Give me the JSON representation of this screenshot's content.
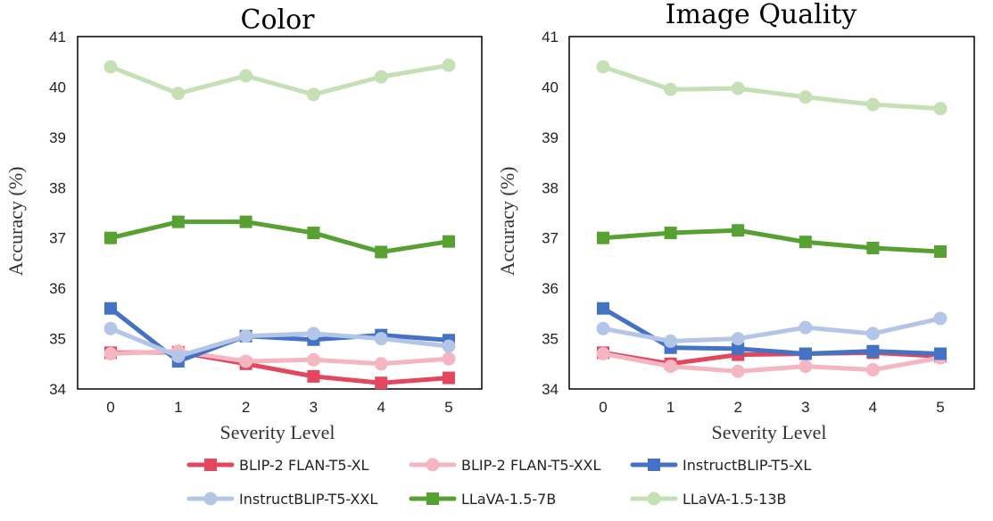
{
  "chart_data": [
    {
      "type": "line",
      "title": "Color",
      "xlabel": "Severity Level",
      "ylabel": "Accuracy (%)",
      "ylim": [
        34,
        41
      ],
      "yticks": [
        34,
        35,
        36,
        37,
        38,
        39,
        40,
        41
      ],
      "x": [
        0,
        1,
        2,
        3,
        4,
        5
      ],
      "grid": false,
      "series": [
        {
          "name": "BLIP-2 FLAN-T5-XL",
          "values": [
            34.72,
            34.73,
            34.5,
            34.25,
            34.12,
            34.22
          ]
        },
        {
          "name": "BLIP-2 FLAN-T5-XXL",
          "values": [
            34.7,
            34.75,
            34.55,
            34.58,
            34.5,
            34.6
          ]
        },
        {
          "name": "InstructBLIP-T5-XL",
          "values": [
            35.6,
            34.55,
            35.05,
            34.98,
            35.07,
            34.97
          ]
        },
        {
          "name": "InstructBLIP-T5-XXL",
          "values": [
            35.2,
            34.65,
            35.05,
            35.1,
            35.0,
            34.85
          ]
        },
        {
          "name": "LLaVA-1.5-7B",
          "values": [
            37.0,
            37.32,
            37.32,
            37.1,
            36.72,
            36.93
          ]
        },
        {
          "name": "LLaVA-1.5-13B",
          "values": [
            40.4,
            39.87,
            40.22,
            39.85,
            40.2,
            40.43
          ]
        }
      ]
    },
    {
      "type": "line",
      "title": "Image Quality",
      "xlabel": "Severity Level",
      "ylabel": "Accuracy (%)",
      "ylim": [
        34,
        41
      ],
      "yticks": [
        34,
        35,
        36,
        37,
        38,
        39,
        40,
        41
      ],
      "x": [
        0,
        1,
        2,
        3,
        4,
        5
      ],
      "grid": false,
      "series": [
        {
          "name": "BLIP-2 FLAN-T5-XL",
          "values": [
            34.72,
            34.5,
            34.68,
            34.7,
            34.72,
            34.65
          ]
        },
        {
          "name": "BLIP-2 FLAN-T5-XXL",
          "values": [
            34.7,
            34.45,
            34.35,
            34.45,
            34.38,
            34.62
          ]
        },
        {
          "name": "InstructBLIP-T5-XL",
          "values": [
            35.6,
            34.82,
            34.8,
            34.7,
            34.75,
            34.7
          ]
        },
        {
          "name": "InstructBLIP-T5-XXL",
          "values": [
            35.2,
            34.95,
            35.0,
            35.22,
            35.1,
            35.4
          ]
        },
        {
          "name": "LLaVA-1.5-7B",
          "values": [
            37.0,
            37.1,
            37.15,
            36.92,
            36.8,
            36.73
          ]
        },
        {
          "name": "LLaVA-1.5-13B",
          "values": [
            40.4,
            39.95,
            39.97,
            39.8,
            39.65,
            39.57
          ]
        }
      ]
    }
  ],
  "legend": {
    "placement": "bottom",
    "items": [
      {
        "name": "BLIP-2 FLAN-T5-XL",
        "color": "#e2475f",
        "marker": "square"
      },
      {
        "name": "BLIP-2 FLAN-T5-XXL",
        "color": "#f4b6c0",
        "marker": "circle"
      },
      {
        "name": "InstructBLIP-T5-XL",
        "color": "#4472c4",
        "marker": "square"
      },
      {
        "name": "InstructBLIP-T5-XXL",
        "color": "#b4c6e7",
        "marker": "circle"
      },
      {
        "name": "LLaVA-1.5-7B",
        "color": "#57a032",
        "marker": "square"
      },
      {
        "name": "LLaVA-1.5-13B",
        "color": "#c5e0b4",
        "marker": "circle"
      }
    ]
  }
}
